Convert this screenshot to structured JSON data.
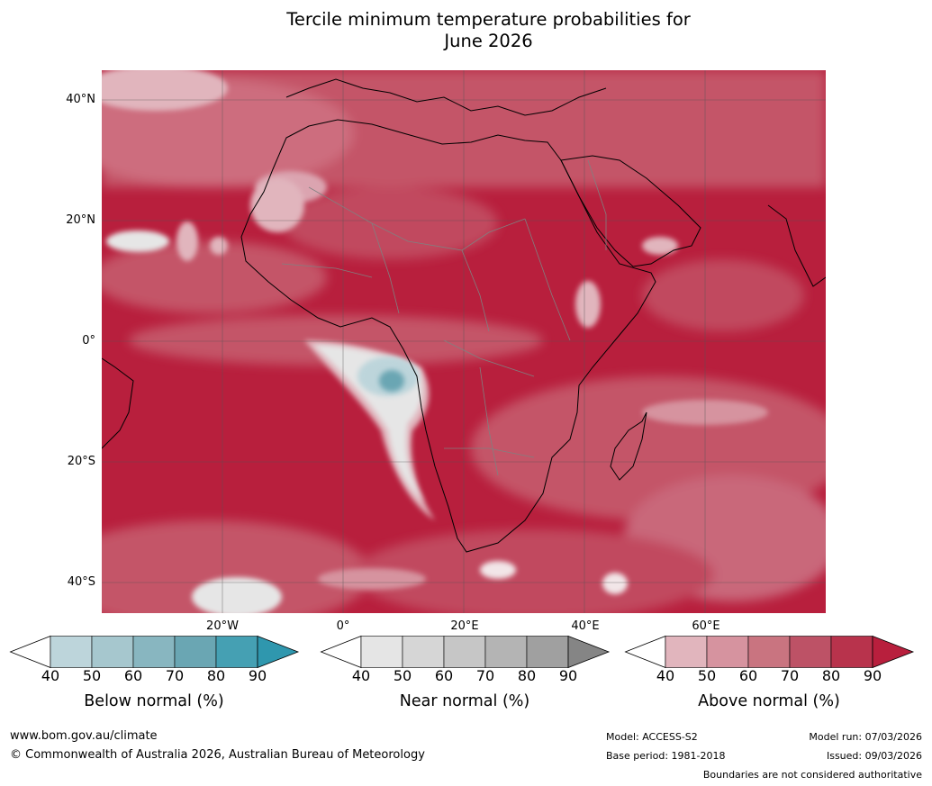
{
  "title": {
    "line1": "Tercile minimum temperature probabilities for",
    "line2": "June 2026"
  },
  "map": {
    "region": "Africa",
    "lat_labels": [
      "40°N",
      "20°N",
      "0°",
      "20°S",
      "40°S"
    ],
    "lon_labels": [
      "20°W",
      "0°",
      "20°E",
      "40°E",
      "60°E"
    ],
    "ocean_base_color": "#b81f3d",
    "coastline_color": "#000000",
    "border_color": "#808080",
    "gridline_color": "#555555"
  },
  "colorbars": [
    {
      "title": "Below normal (%)",
      "ticks": [
        "40",
        "50",
        "60",
        "70",
        "80",
        "90"
      ],
      "colors": [
        "#ffffff",
        "#bdd5db",
        "#a6c7ce",
        "#88b6c0",
        "#6aa6b3",
        "#45a0b3",
        "#2f97ae"
      ]
    },
    {
      "title": "Near normal (%)",
      "ticks": [
        "40",
        "50",
        "60",
        "70",
        "80",
        "90"
      ],
      "colors": [
        "#ffffff",
        "#e5e5e5",
        "#d6d6d6",
        "#c6c6c6",
        "#b4b4b4",
        "#a0a0a0",
        "#858585"
      ]
    },
    {
      "title": "Above normal (%)",
      "ticks": [
        "40",
        "50",
        "60",
        "70",
        "80",
        "90"
      ],
      "colors": [
        "#ffffff",
        "#e1b5bd",
        "#d6939f",
        "#c97480",
        "#bd5266",
        "#b8334c",
        "#b81f3d"
      ]
    }
  ],
  "footer": {
    "website": "www.bom.gov.au/climate",
    "copyright": "© Commonwealth of Australia 2026, Australian Bureau of Meteorology",
    "model": "Model: ACCESS-S2",
    "base_period": "Base period: 1981-2018",
    "model_run": "Model run: 07/03/2026",
    "issued": "Issued: 09/03/2026",
    "disclaimer": "Boundaries are not considered authoritative"
  }
}
